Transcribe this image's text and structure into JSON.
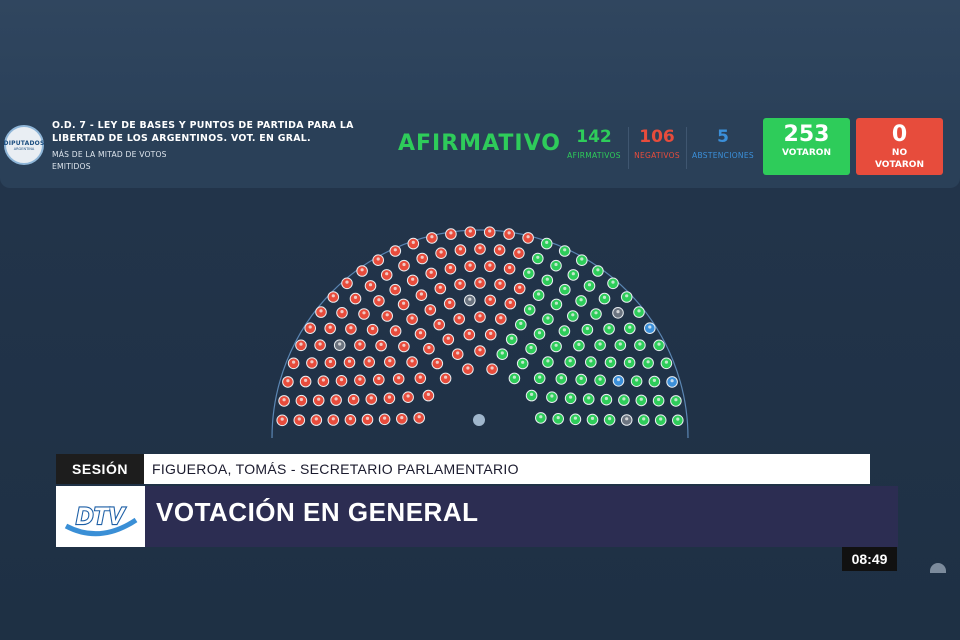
{
  "header": {
    "order": "O.D. 7 - LEY DE BASES Y PUNTOS DE PARTIDA PARA LA LIBERTAD DE LOS ARGENTINOS. VOT. EN GRAL.",
    "majority": "MÁS DE LA MITAD DE VOTOS EMITIDOS",
    "logo_text": "DIPUTADOS",
    "logo_sub": "ARGENTINA"
  },
  "result": {
    "label": "AFIRMATIVO",
    "color": "#2ecc5a"
  },
  "counts": {
    "afirmativos": {
      "value": "142",
      "label": "AFIRMATIVOS",
      "color": "#2ecc5a"
    },
    "negativos": {
      "value": "106",
      "label": "NEGATIVOS",
      "color": "#e74c3c"
    },
    "abstenciones": {
      "value": "5",
      "label": "ABSTENCIONES",
      "color": "#3b8fd9"
    },
    "votaron": {
      "value": "253",
      "label": "VOTARON",
      "color": "#2ecc5a"
    },
    "no_votaron": {
      "value": "0",
      "label": "NO VOTARON",
      "color": "#e74c3c"
    }
  },
  "lower_third": {
    "tag": "SESIÓN",
    "speaker": "FIGUEROA, TOMÁS - SECRETARIO PARLAMENTARIO",
    "title": "VOTACIÓN EN GENERAL",
    "channel_logo": "DTV"
  },
  "clock": "08:49",
  "colors": {
    "yes": "#2ecc5a",
    "no": "#e74c3c",
    "abstain": "#3b8fd9",
    "absent": "#6b7480"
  }
}
